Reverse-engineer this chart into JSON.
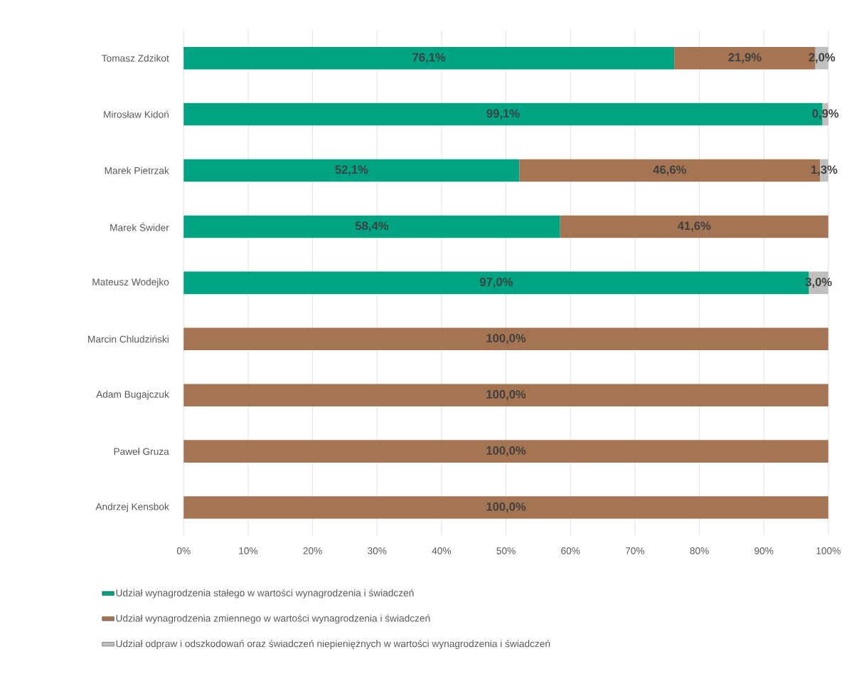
{
  "chart_data": {
    "type": "bar",
    "orientation": "horizontal",
    "stacked": true,
    "categories": [
      "Tomasz Zdzikot",
      "Mirosław Kidoń",
      "Marek Pietrzak",
      "Marek Świder",
      "Mateusz Wodejko",
      "Marcin Chludziński",
      "Adam Bugajczuk",
      "Paweł Gruza",
      "Andrzej Kensbok"
    ],
    "series": [
      {
        "name": "Udział wynagrodzenia stałego w wartości wynagrodzenia i świadczeń",
        "color": "#00a382",
        "values": [
          76.1,
          99.1,
          52.1,
          58.4,
          97.0,
          null,
          null,
          null,
          null
        ],
        "value_labels": [
          "76,1%",
          "99,1%",
          "52,1%",
          "58,4%",
          "97,0%",
          null,
          null,
          null,
          null
        ]
      },
      {
        "name": "Udział wynagrodzenia zmiennego w wartości wynagrodzenia i świadczeń",
        "color": "#a57452",
        "values": [
          21.9,
          null,
          46.6,
          41.6,
          null,
          100.0,
          100.0,
          100.0,
          100.0
        ],
        "value_labels": [
          "21,9%",
          null,
          "46,6%",
          "41,6%",
          null,
          "100,0%",
          "100,0%",
          "100,0%",
          "100,0%"
        ]
      },
      {
        "name": "Udział odpraw i odszkodowań oraz świadczeń niepieniężnych w wartości wynagrodzenia i świadczeń",
        "color": "#bfbfbf",
        "values": [
          2.0,
          0.9,
          1.3,
          null,
          3.0,
          null,
          null,
          null,
          null
        ],
        "value_labels": [
          "2,0%",
          "0,9%",
          "1,3%",
          null,
          "3,0%",
          null,
          null,
          null,
          null
        ]
      }
    ],
    "xlim": [
      0,
      100
    ],
    "xticks": [
      {
        "value": 0,
        "label": "0%"
      },
      {
        "value": 10,
        "label": "10%"
      },
      {
        "value": 20,
        "label": "20%"
      },
      {
        "value": 30,
        "label": "30%"
      },
      {
        "value": 40,
        "label": "40%"
      },
      {
        "value": 50,
        "label": "50%"
      },
      {
        "value": 60,
        "label": "60%"
      },
      {
        "value": 70,
        "label": "70%"
      },
      {
        "value": 80,
        "label": "80%"
      },
      {
        "value": 90,
        "label": "90%"
      },
      {
        "value": 100,
        "label": "100%"
      }
    ],
    "grid": "x",
    "legend": "bottom"
  }
}
